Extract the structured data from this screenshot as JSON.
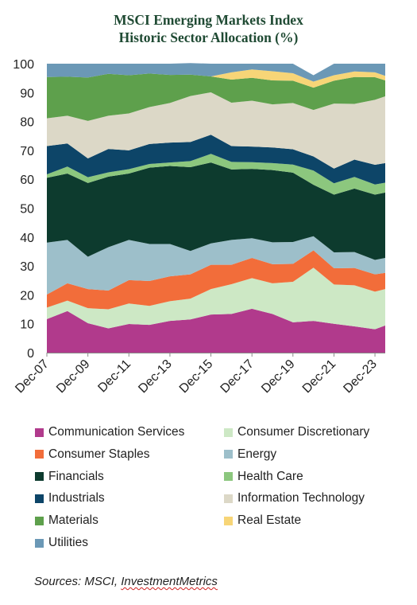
{
  "chart_data": {
    "type": "area",
    "stacked": true,
    "title": "MSCI Emerging Markets Index",
    "subtitle": "Historic Sector Allocation (%)",
    "ylim": [
      0,
      100
    ],
    "yticks": [
      0,
      10,
      20,
      30,
      40,
      50,
      60,
      70,
      80,
      90,
      100
    ],
    "x": [
      "2007-12",
      "2008-12",
      "2009-12",
      "2010-12",
      "2011-12",
      "2012-12",
      "2013-12",
      "2014-12",
      "2015-12",
      "2016-12",
      "2017-12",
      "2018-12",
      "2019-12",
      "2020-12",
      "2021-12",
      "2022-12",
      "2023-12",
      "2024-06"
    ],
    "xtick_labels": [
      "Dec-07",
      "Dec-09",
      "Dec-11",
      "Dec-13",
      "Dec-15",
      "Dec-17",
      "Dec-19",
      "Dec-21",
      "Dec-23"
    ],
    "grid": false,
    "legend_position": "bottom",
    "series": [
      {
        "name": "Communication Services",
        "color": "#b13a8c",
        "values": [
          11.6,
          14.4,
          10.2,
          8.4,
          9.9,
          9.6,
          11.0,
          11.5,
          13.2,
          13.4,
          15.2,
          13.4,
          10.5,
          11.0,
          10.0,
          9.1,
          8.1,
          9.4
        ]
      },
      {
        "name": "Consumer Discretionary",
        "color": "#cde8c5",
        "values": [
          4.0,
          3.6,
          5.2,
          6.6,
          7.1,
          6.6,
          6.8,
          7.2,
          8.8,
          10.3,
          10.6,
          10.6,
          14.0,
          18.4,
          13.6,
          14.2,
          13.0,
          12.6
        ]
      },
      {
        "name": "Consumer Staples",
        "color": "#f26d3a",
        "values": [
          4.5,
          6.0,
          6.6,
          6.5,
          8.1,
          8.6,
          8.6,
          8.4,
          8.4,
          6.7,
          7.0,
          6.6,
          6.2,
          6.0,
          5.6,
          6.0,
          6.0,
          5.6
        ]
      },
      {
        "name": "Energy",
        "color": "#9dbfca",
        "values": [
          18.0,
          15.0,
          11.2,
          15.0,
          13.9,
          12.8,
          11.2,
          8.1,
          7.4,
          8.6,
          6.8,
          7.6,
          7.6,
          4.9,
          5.5,
          5.5,
          5.0,
          5.2
        ]
      },
      {
        "name": "Financials",
        "color": "#0d3b2e",
        "values": [
          22.4,
          23.0,
          25.5,
          24.4,
          23.0,
          26.4,
          27.0,
          29.0,
          28.0,
          24.4,
          24.0,
          25.0,
          24.0,
          17.8,
          20.0,
          22.0,
          22.6,
          22.6
        ]
      },
      {
        "name": "Health Care",
        "color": "#8cc77e",
        "values": [
          1.2,
          2.4,
          2.0,
          1.5,
          1.5,
          1.3,
          1.2,
          2.1,
          3.0,
          2.6,
          2.3,
          2.4,
          2.8,
          4.9,
          3.9,
          4.0,
          3.5,
          3.4
        ]
      },
      {
        "name": "Industrials",
        "color": "#0d4568",
        "values": [
          9.8,
          8.0,
          6.5,
          8.1,
          6.5,
          6.9,
          6.9,
          6.6,
          6.6,
          5.5,
          5.4,
          5.4,
          5.3,
          4.9,
          5.1,
          6.0,
          6.8,
          6.8
        ]
      },
      {
        "name": "Information Technology",
        "color": "#dcd8c7",
        "values": [
          9.6,
          9.6,
          13.0,
          11.5,
          12.8,
          12.8,
          13.7,
          15.9,
          14.7,
          15.0,
          15.9,
          14.9,
          16.0,
          16.1,
          22.5,
          19.3,
          22.5,
          23.1
        ]
      },
      {
        "name": "Materials",
        "color": "#5ea04c",
        "values": [
          14.3,
          13.5,
          15.0,
          14.5,
          13.2,
          11.6,
          9.7,
          7.4,
          5.5,
          8.0,
          7.9,
          8.3,
          7.7,
          7.7,
          7.9,
          9.3,
          7.8,
          5.5
        ]
      },
      {
        "name": "Real Estate",
        "color": "#f7d577",
        "values": [
          0.0,
          0.0,
          0.0,
          0.0,
          0.0,
          0.0,
          0.0,
          0.0,
          0.0,
          2.5,
          2.9,
          3.2,
          2.6,
          2.1,
          1.9,
          1.9,
          1.7,
          1.6
        ]
      },
      {
        "name": "Utilities",
        "color": "#6b98b6",
        "values": [
          4.6,
          4.5,
          4.8,
          3.5,
          4.0,
          3.4,
          3.9,
          4.0,
          4.4,
          3.0,
          2.0,
          2.6,
          3.3,
          2.2,
          4.0,
          2.7,
          3.0,
          4.2
        ]
      }
    ],
    "source": "Sources: MSCI, InvestmentMetrics"
  },
  "source": {
    "prefix": "Sources: MSCI, ",
    "underlined": "InvestmentMetrics"
  }
}
